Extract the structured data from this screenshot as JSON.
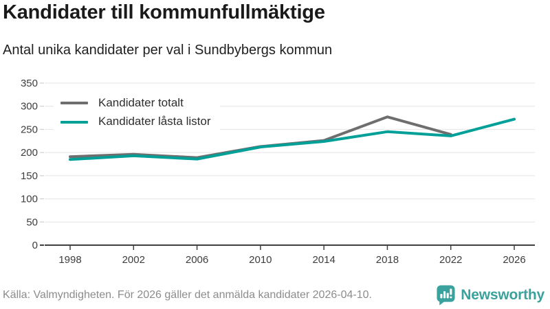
{
  "header": {
    "title": "Kandidater till kommunfullmäktige",
    "subtitle": "Antal unika kandidater per val i Sundbybergs kommun"
  },
  "chart_data": {
    "type": "line",
    "categories": [
      "1998",
      "2002",
      "2006",
      "2010",
      "2014",
      "2018",
      "2022",
      "2026"
    ],
    "series": [
      {
        "name": "Kandidater totalt",
        "color": "#6e6e6e",
        "values": [
          191,
          196,
          189,
          213,
          226,
          277,
          239,
          null
        ]
      },
      {
        "name": "Kandidater låsta listor",
        "color": "#00a099",
        "values": [
          185,
          193,
          186,
          212,
          224,
          245,
          236,
          272
        ]
      }
    ],
    "title": "Kandidater till kommunfullmäktige",
    "xlabel": "",
    "ylabel": "",
    "ylim": [
      0,
      350
    ],
    "ytick_step": 50,
    "grid": true,
    "legend_position": "top-left"
  },
  "footer": {
    "source": "Källa: Valmyndigheten. För 2026 gäller det anmälda kandidater 2026-04-10.",
    "brand": "Newsworthy"
  },
  "colors": {
    "accent": "#00a099",
    "total_line": "#6e6e6e",
    "brand": "#3aa29c",
    "grid": "#e4e4e4",
    "axis": "#3f3f3f",
    "tick_label": "#3d3d3d",
    "source_text": "#8c8c8c"
  },
  "icons": {
    "logo": "newsworthy-speech-bubble-chart-icon"
  }
}
